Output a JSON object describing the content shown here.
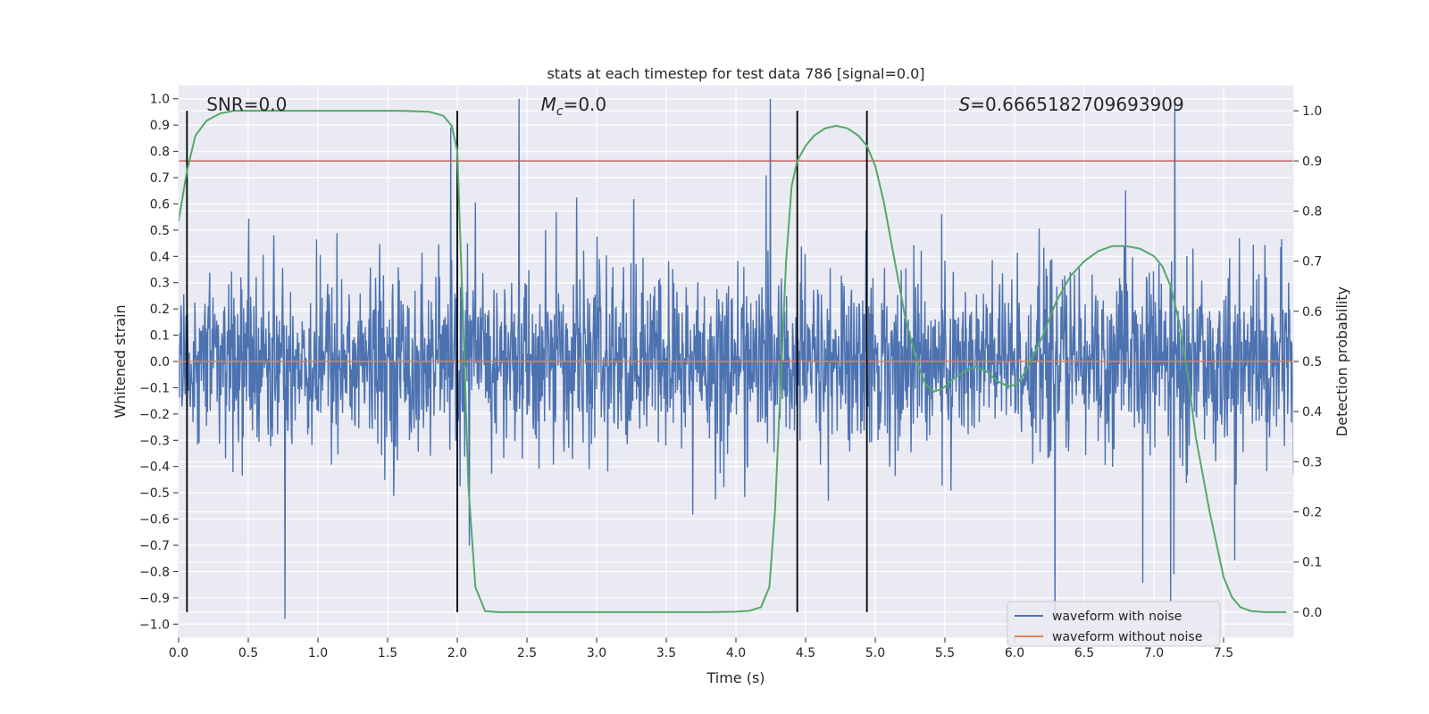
{
  "chart_data": {
    "type": "line",
    "title": "stats at each timestep for test data 786 [signal=0.0]",
    "xlabel": "Time (s)",
    "ylabel_left": "Whitened strain",
    "ylabel_right": "Detection probability",
    "xlim": [
      0.0,
      8.0
    ],
    "ylim_left": [
      -1.05,
      1.05
    ],
    "ylim_right": [
      -0.05,
      1.05
    ],
    "x_ticks": [
      "0.0",
      "0.5",
      "1.0",
      "1.5",
      "2.0",
      "2.5",
      "3.0",
      "3.5",
      "4.0",
      "4.5",
      "5.0",
      "5.5",
      "6.0",
      "6.5",
      "7.0",
      "7.5"
    ],
    "y_ticks_left": [
      "1.0",
      "0.9",
      "0.8",
      "0.7",
      "0.6",
      "0.5",
      "0.4",
      "0.3",
      "0.2",
      "0.1",
      "0.0",
      "-0.1",
      "-0.2",
      "-0.3",
      "-0.4",
      "-0.5",
      "-0.6",
      "-0.7",
      "-0.8",
      "-0.9",
      "-1.0"
    ],
    "y_ticks_right": [
      "1.0",
      "0.9",
      "0.8",
      "0.7",
      "0.6",
      "0.5",
      "0.4",
      "0.3",
      "0.2",
      "0.1",
      "0.0"
    ],
    "grid": true,
    "background": "#eaeaf2",
    "annotations": [
      {
        "key": "snr",
        "prefix": "SNR",
        "value": "=0.0",
        "x": 0.2
      },
      {
        "key": "mc",
        "prefix": "M",
        "subscript": "c",
        "value": "=0.0",
        "x": 2.6
      },
      {
        "key": "s",
        "prefix": "S",
        "value": "=0.6665182709693909",
        "x": 5.6
      }
    ],
    "vertical_lines": [
      0.06,
      2.0,
      4.44,
      4.94
    ],
    "threshold_right": 0.9,
    "series": [
      {
        "key": "noisy",
        "name": "waveform with noise",
        "color": "#4c72b0",
        "axis": "left",
        "description": "dense noise, envelope approx +/-0.4 with spikes to +/-1.0"
      },
      {
        "key": "clean",
        "name": "waveform without noise",
        "color": "#dd8452",
        "axis": "left",
        "values_constant": 0.0
      },
      {
        "key": "prob",
        "color": "#55a868",
        "axis": "right",
        "x": [
          0.0,
          0.06,
          0.12,
          0.2,
          0.3,
          0.4,
          0.6,
          0.8,
          1.0,
          1.2,
          1.4,
          1.6,
          1.8,
          1.9,
          1.96,
          2.0,
          2.04,
          2.08,
          2.13,
          2.2,
          2.3,
          2.6,
          3.0,
          3.5,
          3.8,
          4.0,
          4.1,
          4.18,
          4.24,
          4.28,
          4.32,
          4.36,
          4.4,
          4.44,
          4.5,
          4.56,
          4.64,
          4.72,
          4.8,
          4.88,
          4.94,
          5.0,
          5.06,
          5.14,
          5.22,
          5.3,
          5.36,
          5.42,
          5.48,
          5.56,
          5.64,
          5.72,
          5.8,
          5.88,
          5.96,
          6.02,
          6.1,
          6.2,
          6.3,
          6.4,
          6.5,
          6.6,
          6.7,
          6.8,
          6.9,
          7.0,
          7.06,
          7.12,
          7.18,
          7.24,
          7.3,
          7.4,
          7.5,
          7.56,
          7.62,
          7.7,
          7.8,
          7.95
        ],
        "values": [
          0.78,
          0.88,
          0.95,
          0.98,
          0.995,
          1.0,
          1.0,
          1.0,
          1.0,
          1.0,
          1.0,
          1.0,
          0.998,
          0.99,
          0.97,
          0.92,
          0.6,
          0.25,
          0.05,
          0.002,
          0.0,
          0.0,
          0.0,
          0.0,
          0.0,
          0.001,
          0.003,
          0.01,
          0.05,
          0.2,
          0.45,
          0.7,
          0.85,
          0.9,
          0.93,
          0.95,
          0.965,
          0.97,
          0.965,
          0.95,
          0.93,
          0.89,
          0.82,
          0.7,
          0.58,
          0.5,
          0.455,
          0.44,
          0.445,
          0.465,
          0.48,
          0.49,
          0.48,
          0.46,
          0.45,
          0.455,
          0.49,
          0.55,
          0.62,
          0.67,
          0.7,
          0.72,
          0.73,
          0.73,
          0.725,
          0.71,
          0.69,
          0.65,
          0.58,
          0.48,
          0.35,
          0.2,
          0.07,
          0.03,
          0.01,
          0.002,
          0.0,
          0.0
        ]
      }
    ],
    "legend": {
      "placement": "lower-right"
    }
  }
}
